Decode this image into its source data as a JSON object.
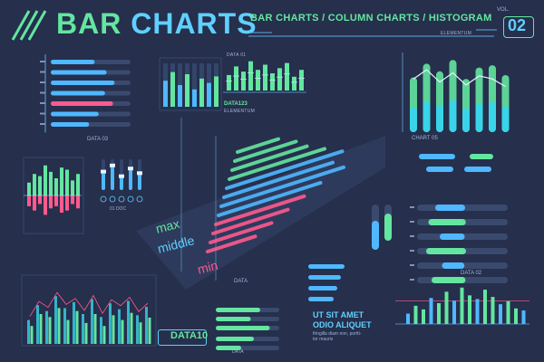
{
  "header": {
    "title_part1": "BAR ",
    "title_part2": "CHARTS",
    "subtitle": "BAR CHARTS / COLUMN CHARTS / HISTOGRAM",
    "elementum_label": "ELEMENTUM",
    "vol_label": "VOL.",
    "vol_number": "02"
  },
  "labels": {
    "data_01": "DATA 01",
    "data_03": "DATA 03",
    "data_123": "DATA123",
    "elementum_small": "ELEMENTUM",
    "chart_05": "CHART 05",
    "data_02": "DATA 02",
    "data_10": "DATA10",
    "data_small": "DATA",
    "doc_01": "01 DOC",
    "max": "max",
    "middle": "middle",
    "min": "min",
    "lorem_line1": "UT SIT AMET",
    "lorem_line2": "ODIO ALIQUET",
    "lorem_small1": "fringilla diam non, portti-",
    "lorem_small2": "tor mauris"
  },
  "colors": {
    "background": "#262f4c",
    "accent_green": "#63e6a0",
    "accent_blue": "#4fb8ff",
    "accent_pink": "#ff5a8e",
    "accent_cyan": "#39d4e8"
  },
  "chart_data": [
    {
      "type": "bar",
      "orientation": "horizontal",
      "name": "top-left horizontal bars",
      "values": [
        55,
        70,
        80,
        68,
        78,
        60,
        48
      ],
      "max": 100
    },
    {
      "type": "bar",
      "name": "small column chart DATA 01",
      "values": [
        60,
        80,
        50,
        75,
        40,
        65,
        55,
        70
      ],
      "max": 100
    },
    {
      "type": "bar",
      "name": "column chart DATA123",
      "values": [
        45,
        70,
        55,
        85,
        60,
        75,
        50,
        65,
        80,
        40,
        60
      ],
      "max": 100
    },
    {
      "type": "bar",
      "name": "column chart CHART 05",
      "values": [
        72,
        90,
        80,
        95,
        70,
        85,
        88,
        75
      ],
      "line": [
        70,
        82,
        66,
        78,
        62,
        74,
        70,
        60
      ],
      "max": 100
    },
    {
      "type": "bar",
      "name": "diverging histogram",
      "values": [
        30,
        50,
        45,
        70,
        55,
        40,
        65,
        60,
        35,
        50
      ],
      "negative": [
        25,
        35,
        20,
        45,
        30,
        25,
        40,
        35,
        20,
        30
      ],
      "max": 80
    },
    {
      "type": "bar",
      "name": "01 DOC slider columns",
      "values": [
        60,
        80,
        45,
        70,
        55
      ],
      "max": 100
    },
    {
      "type": "bar",
      "name": "grouped bottom-left histogram",
      "values": [
        40,
        65,
        55,
        80,
        60,
        70,
        50,
        75,
        45,
        68,
        58,
        72,
        48,
        62
      ],
      "values2": [
        30,
        50,
        45,
        60,
        40,
        55,
        35,
        50,
        30,
        48,
        40,
        52,
        36,
        44
      ],
      "max": 100
    },
    {
      "type": "bar",
      "name": "DATA 02 histogram",
      "values": [
        20,
        35,
        28,
        50,
        40,
        62,
        45,
        70,
        55,
        48,
        66,
        52,
        38,
        44,
        30,
        26
      ],
      "max": 80
    },
    {
      "type": "bar",
      "orientation": "horizontal",
      "name": "right range bars",
      "values": [
        60,
        75,
        50,
        80,
        45,
        68
      ],
      "max": 100
    },
    {
      "type": "bar",
      "orientation": "horizontal",
      "name": "3d perspective bars",
      "values": [
        30,
        45,
        55,
        70,
        85,
        80,
        90,
        75,
        65,
        55,
        45,
        35
      ],
      "max": 100
    }
  ]
}
